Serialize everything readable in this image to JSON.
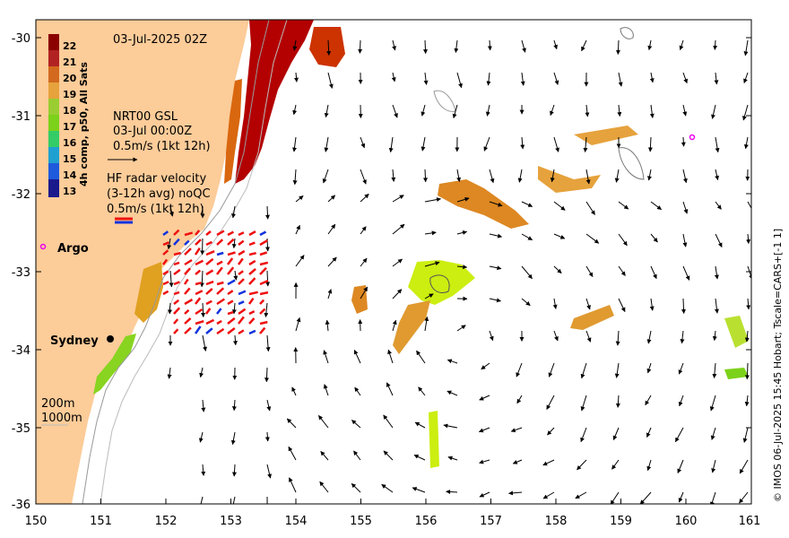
{
  "header": {
    "datetime": "03-Jul-2025 02Z"
  },
  "colorbar": {
    "title": "4h comp, p50, All Sats",
    "ticks": [
      "22",
      "21",
      "20",
      "19",
      "18",
      "17",
      "16",
      "15",
      "14",
      "13"
    ],
    "colors": [
      "#8b0000",
      "#b22222",
      "#d2691e",
      "#e6a23c",
      "#9acd32",
      "#7cd11a",
      "#33cc66",
      "#1fa0d0",
      "#1e5adc",
      "#1a1a8c"
    ]
  },
  "legend_gsl": {
    "title": "NRT00 GSL",
    "time": "03-Jul 00:00Z",
    "scale": "0.5m/s (1kt 12h)"
  },
  "legend_hf": {
    "title": "HF radar velocity",
    "avg": "(3-12h avg) noQC",
    "scale": "0.5m/s (1kt 12h)"
  },
  "places": {
    "argo": "Argo",
    "sydney": "Sydney"
  },
  "bathy": {
    "iso1": "200m",
    "iso2": "1000m"
  },
  "credit": "© IMOS 06-Jul-2025 15:45 Hobart; Tscale=CARS+[-1 1]",
  "axes": {
    "x_ticks": [
      "150",
      "151",
      "152",
      "153",
      "154",
      "155",
      "156",
      "157",
      "158",
      "159",
      "160",
      "161"
    ],
    "y_ticks": [
      "-30",
      "-31",
      "-32",
      "-33",
      "-34",
      "-35",
      "-36"
    ]
  },
  "colors": {
    "land": "#fccc99",
    "ocean": "#ffffff",
    "hf_radar": "#ee1111",
    "hf_radar_alt": "#1133dd",
    "argo_marker": "#ee00ee"
  }
}
